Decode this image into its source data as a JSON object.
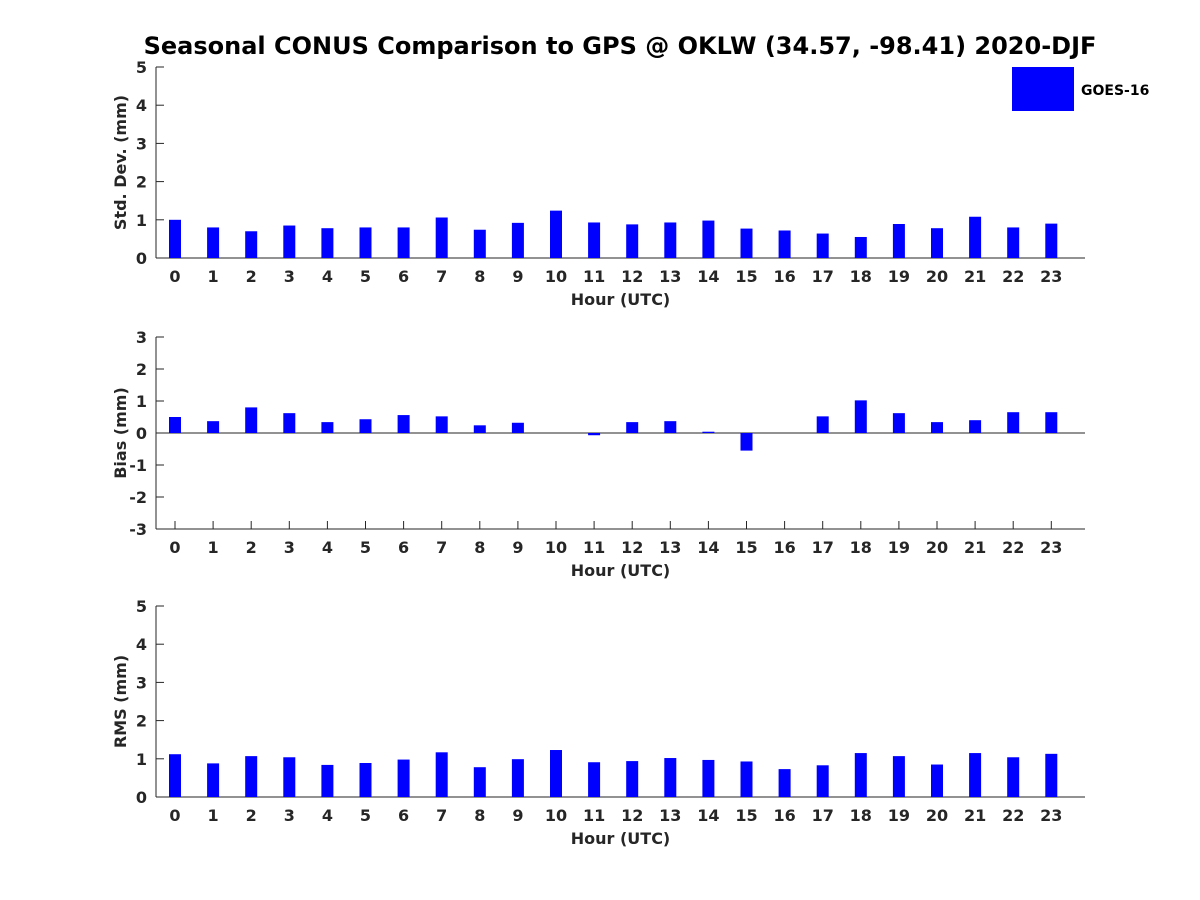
{
  "title": "Seasonal CONUS Comparison to GPS @ OKLW (34.57, -98.41) 2020-DJF",
  "legend": {
    "label": "GOES-16",
    "color": "#0000ff"
  },
  "chart_data": [
    {
      "type": "bar",
      "xlabel": "Hour (UTC)",
      "ylabel": "Std. Dev. (mm)",
      "ylim": [
        0,
        5
      ],
      "yticks": [
        "0",
        "1",
        "2",
        "3",
        "4",
        "5"
      ],
      "categories": [
        "0",
        "1",
        "2",
        "3",
        "4",
        "5",
        "6",
        "7",
        "8",
        "9",
        "10",
        "11",
        "12",
        "13",
        "14",
        "15",
        "16",
        "17",
        "18",
        "19",
        "20",
        "21",
        "22",
        "23"
      ],
      "series": [
        {
          "name": "GOES-16",
          "values": [
            1.0,
            0.8,
            0.7,
            0.85,
            0.78,
            0.8,
            0.8,
            1.06,
            0.74,
            0.92,
            1.24,
            0.93,
            0.88,
            0.93,
            0.98,
            0.77,
            0.72,
            0.64,
            0.55,
            0.89,
            0.78,
            1.08,
            0.8,
            0.9
          ]
        }
      ]
    },
    {
      "type": "bar",
      "xlabel": "Hour (UTC)",
      "ylabel": "Bias (mm)",
      "ylim": [
        -3,
        3
      ],
      "yticks": [
        "-3",
        "-2",
        "-1",
        "0",
        "1",
        "2",
        "3"
      ],
      "categories": [
        "0",
        "1",
        "2",
        "3",
        "4",
        "5",
        "6",
        "7",
        "8",
        "9",
        "10",
        "11",
        "12",
        "13",
        "14",
        "15",
        "16",
        "17",
        "18",
        "19",
        "20",
        "21",
        "22",
        "23"
      ],
      "series": [
        {
          "name": "GOES-16",
          "values": [
            0.5,
            0.37,
            0.8,
            0.62,
            0.34,
            0.43,
            0.56,
            0.52,
            0.24,
            0.32,
            0.0,
            -0.07,
            0.34,
            0.37,
            0.04,
            -0.55,
            0.0,
            0.52,
            1.02,
            0.62,
            0.34,
            0.4,
            0.65,
            0.65
          ]
        }
      ]
    },
    {
      "type": "bar",
      "xlabel": "Hour (UTC)",
      "ylabel": "RMS (mm)",
      "ylim": [
        0,
        5
      ],
      "yticks": [
        "0",
        "1",
        "2",
        "3",
        "4",
        "5"
      ],
      "categories": [
        "0",
        "1",
        "2",
        "3",
        "4",
        "5",
        "6",
        "7",
        "8",
        "9",
        "10",
        "11",
        "12",
        "13",
        "14",
        "15",
        "16",
        "17",
        "18",
        "19",
        "20",
        "21",
        "22",
        "23"
      ],
      "series": [
        {
          "name": "GOES-16",
          "values": [
            1.12,
            0.88,
            1.07,
            1.04,
            0.84,
            0.89,
            0.98,
            1.17,
            0.78,
            0.99,
            1.23,
            0.91,
            0.94,
            1.02,
            0.97,
            0.93,
            0.73,
            0.83,
            1.15,
            1.07,
            0.85,
            1.15,
            1.04,
            1.13
          ]
        }
      ]
    }
  ]
}
